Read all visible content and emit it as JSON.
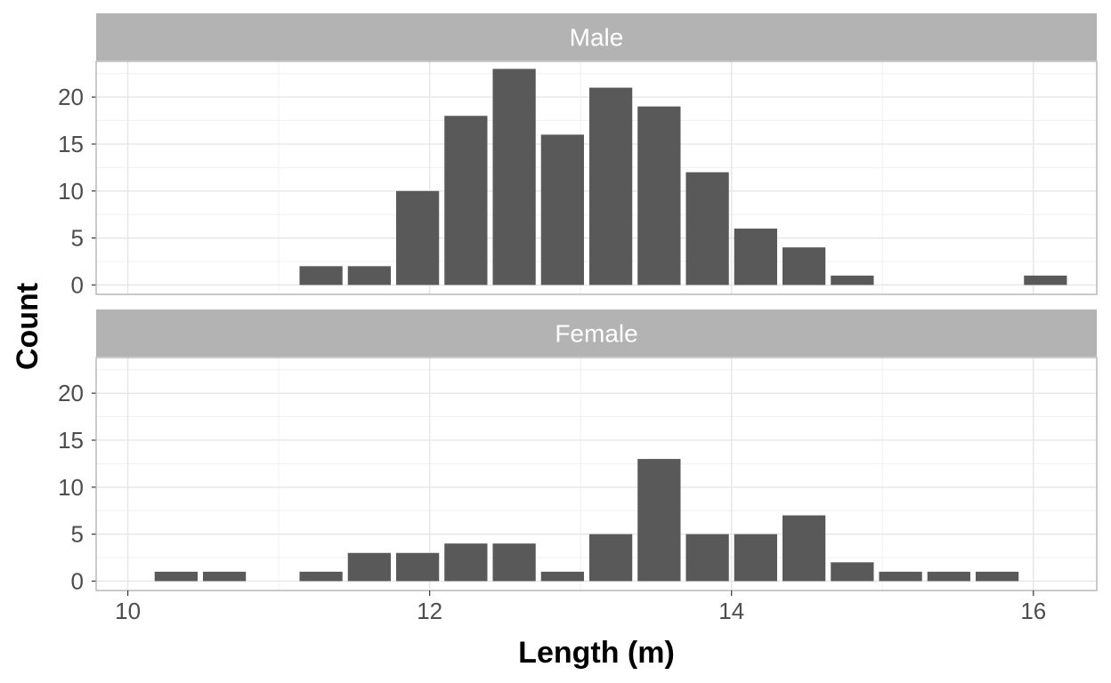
{
  "chart_data": {
    "type": "bar",
    "xlabel": "Length (m)",
    "ylabel": "Count",
    "bin_width": 0.32,
    "x": [
      10.32,
      10.64,
      10.96,
      11.28,
      11.6,
      11.92,
      12.24,
      12.56,
      12.88,
      13.2,
      13.52,
      13.84,
      14.16,
      14.48,
      14.8,
      15.12,
      15.44,
      15.76,
      16.08
    ],
    "xlim": [
      9.79,
      16.42
    ],
    "ylim": [
      -1,
      23.8
    ],
    "x_ticks": [
      10,
      12,
      14,
      16
    ],
    "y_ticks": [
      0,
      5,
      10,
      15,
      20
    ],
    "grid": true,
    "bar_color": "#595959",
    "strip_color": "#b3b3b3",
    "grid_color": "#e6e6e6",
    "facets": [
      {
        "name": "Male",
        "values": [
          0,
          0,
          0,
          2,
          2,
          10,
          18,
          23,
          16,
          21,
          19,
          12,
          6,
          4,
          1,
          0,
          0,
          0,
          1
        ]
      },
      {
        "name": "Female",
        "values": [
          1,
          1,
          0,
          1,
          3,
          3,
          4,
          4,
          1,
          5,
          13,
          5,
          5,
          7,
          2,
          1,
          1,
          1,
          0
        ]
      }
    ]
  }
}
